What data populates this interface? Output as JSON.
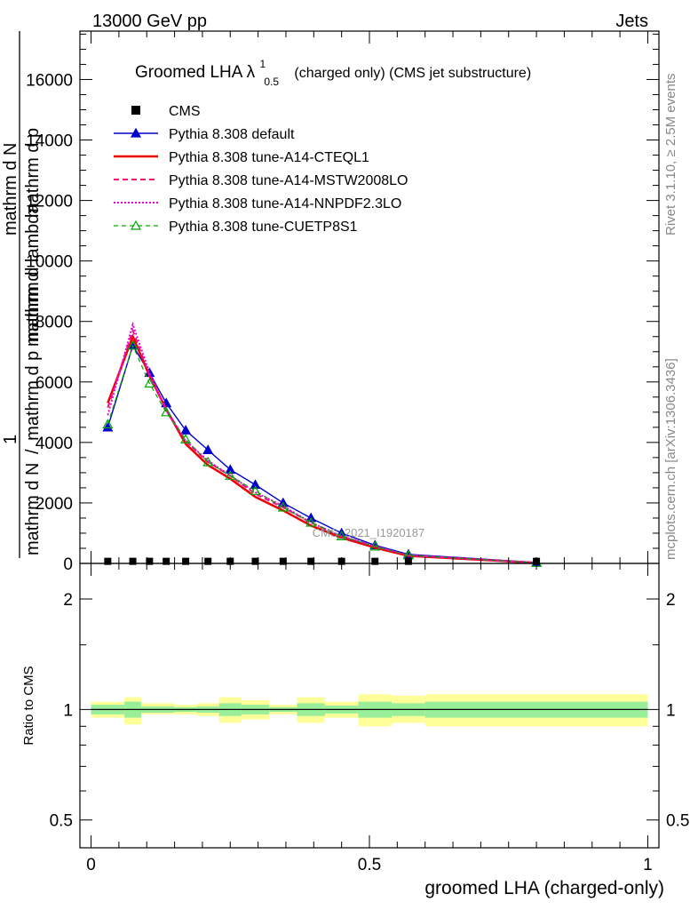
{
  "header": {
    "left": "13000 GeV pp",
    "right": "Jets",
    "side_top": "Rivet 3.1.10, ≥ 2.5M events",
    "side_bottom": "mcplots.cern.ch [arXiv:1306.3436]",
    "watermark": "CMS_2021_I1920187"
  },
  "title": {
    "main": "Groomed LHA λ",
    "sup": "1",
    "sub": "0.5",
    "rest": "(charged only) (CMS jet substructure)"
  },
  "ylabel_main": {
    "frac_one": "1",
    "frac_num": "mathrm d N",
    "frac_den_a": "mathrm d N",
    "frac_den_b": "mathrm d p",
    "frac_den_c": "mathrm d lambda",
    "second_num": "mathrm d",
    "second_den": "mathrm d p"
  },
  "ylabel_ratio": "Ratio to CMS",
  "xlabel": "groomed LHA (charged-only)",
  "colors": {
    "cms": "#000000",
    "default": "#0000cc",
    "cteql1": "#ee0000",
    "mstw": "#ee1177",
    "nnpdf": "#ee00dd",
    "cuetp8s1": "#00aa00",
    "band_outer": "#ffff99",
    "band_inner": "#99ee99"
  },
  "chart_data": [
    {
      "type": "line",
      "panel": "main",
      "x_range": [
        -0.02,
        1.02
      ],
      "ylim": [
        0,
        17600
      ],
      "y_ticks": [
        {
          "v": 0,
          "label": "0"
        },
        {
          "v": 2000,
          "label": "2000"
        },
        {
          "v": 4000,
          "label": "4000"
        },
        {
          "v": 6000,
          "label": "6000"
        },
        {
          "v": 8000,
          "label": "8000"
        },
        {
          "v": 10000,
          "label": "10000"
        },
        {
          "v": 12000,
          "label": "12000"
        },
        {
          "v": 14000,
          "label": "14000"
        },
        {
          "v": 16000,
          "label": "16000"
        }
      ],
      "legend_position": "top-left",
      "x": [
        0.03,
        0.075,
        0.105,
        0.135,
        0.17,
        0.21,
        0.25,
        0.295,
        0.345,
        0.395,
        0.45,
        0.51,
        0.57,
        0.8
      ],
      "series": [
        {
          "name": "CMS",
          "key": "cms",
          "marker": "square",
          "values": [
            40,
            40,
            40,
            40,
            40,
            40,
            40,
            40,
            40,
            40,
            40,
            40,
            40,
            40
          ]
        },
        {
          "name": "Pythia 8.308 default",
          "key": "default",
          "marker": "triangle-filled",
          "dash": "",
          "values": [
            4500,
            7200,
            6300,
            5300,
            4400,
            3750,
            3100,
            2600,
            2000,
            1500,
            1000,
            600,
            300,
            30
          ]
        },
        {
          "name": "Pythia 8.308 tune-A14-CTEQL1",
          "key": "cteql1",
          "marker": "none",
          "dash": "",
          "width": 2.5,
          "values": [
            5300,
            7500,
            6200,
            5100,
            3950,
            3250,
            2800,
            2200,
            1750,
            1250,
            850,
            520,
            250,
            20
          ]
        },
        {
          "name": "Pythia 8.308 tune-A14-MSTW2008LO",
          "key": "mstw",
          "marker": "none",
          "dash": "6,4",
          "width": 2,
          "values": [
            5150,
            7700,
            6200,
            5100,
            4050,
            3350,
            2900,
            2300,
            1850,
            1350,
            900,
            560,
            270,
            20
          ]
        },
        {
          "name": "Pythia 8.308 tune-A14-NNPDF2.3LO",
          "key": "nnpdf",
          "marker": "none",
          "dash": "2,2",
          "width": 2,
          "values": [
            4900,
            7900,
            6300,
            5050,
            4050,
            3400,
            2900,
            2350,
            1900,
            1350,
            900,
            570,
            270,
            20
          ]
        },
        {
          "name": "Pythia 8.308 tune-CUETP8S1",
          "key": "cuetp8s1",
          "marker": "triangle-open",
          "dash": "5,4",
          "width": 1.2,
          "values": [
            4600,
            7200,
            5950,
            5000,
            4100,
            3350,
            2900,
            2400,
            1850,
            1350,
            900,
            560,
            270,
            20
          ]
        }
      ]
    },
    {
      "type": "area",
      "panel": "ratio",
      "x_range": [
        -0.02,
        1.02
      ],
      "ylim_log": [
        0.42,
        2.5
      ],
      "y_ticks": [
        {
          "v": 0.5,
          "label": "0.5"
        },
        {
          "v": 1,
          "label": "1"
        },
        {
          "v": 2,
          "label": "2"
        }
      ],
      "x_ticks": [
        {
          "v": 0,
          "label": "0"
        },
        {
          "v": 0.5,
          "label": "0.5"
        },
        {
          "v": 1,
          "label": "1"
        }
      ],
      "bins": [
        {
          "x0": 0.0,
          "x1": 0.06,
          "outer": [
            0.95,
            1.05
          ],
          "inner": [
            0.97,
            1.03
          ]
        },
        {
          "x0": 0.06,
          "x1": 0.09,
          "outer": [
            0.91,
            1.08
          ],
          "inner": [
            0.95,
            1.05
          ]
        },
        {
          "x0": 0.09,
          "x1": 0.12,
          "outer": [
            0.97,
            1.04
          ],
          "inner": [
            0.98,
            1.02
          ]
        },
        {
          "x0": 0.12,
          "x1": 0.15,
          "outer": [
            0.97,
            1.04
          ],
          "inner": [
            0.98,
            1.02
          ]
        },
        {
          "x0": 0.15,
          "x1": 0.19,
          "outer": [
            0.97,
            1.03
          ],
          "inner": [
            0.985,
            1.015
          ]
        },
        {
          "x0": 0.19,
          "x1": 0.23,
          "outer": [
            0.96,
            1.04
          ],
          "inner": [
            0.98,
            1.02
          ]
        },
        {
          "x0": 0.23,
          "x1": 0.27,
          "outer": [
            0.92,
            1.08
          ],
          "inner": [
            0.96,
            1.04
          ]
        },
        {
          "x0": 0.27,
          "x1": 0.32,
          "outer": [
            0.94,
            1.06
          ],
          "inner": [
            0.97,
            1.03
          ]
        },
        {
          "x0": 0.32,
          "x1": 0.37,
          "outer": [
            0.97,
            1.03
          ],
          "inner": [
            0.985,
            1.015
          ]
        },
        {
          "x0": 0.37,
          "x1": 0.42,
          "outer": [
            0.92,
            1.08
          ],
          "inner": [
            0.96,
            1.04
          ]
        },
        {
          "x0": 0.42,
          "x1": 0.48,
          "outer": [
            0.95,
            1.05
          ],
          "inner": [
            0.975,
            1.025
          ]
        },
        {
          "x0": 0.48,
          "x1": 0.54,
          "outer": [
            0.9,
            1.1
          ],
          "inner": [
            0.95,
            1.05
          ]
        },
        {
          "x0": 0.54,
          "x1": 0.6,
          "outer": [
            0.92,
            1.09
          ],
          "inner": [
            0.96,
            1.04
          ]
        },
        {
          "x0": 0.6,
          "x1": 1.0,
          "outer": [
            0.9,
            1.1
          ],
          "inner": [
            0.95,
            1.05
          ]
        }
      ]
    }
  ]
}
